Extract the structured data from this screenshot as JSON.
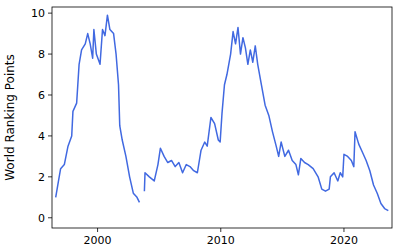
{
  "chart_data": {
    "type": "line",
    "y_label": "World Ranking Points",
    "x": [
      1996.6,
      1996.8,
      1997.0,
      1997.3,
      1997.6,
      1997.9,
      1998.0,
      1998.3,
      1998.5,
      1998.7,
      1999.0,
      1999.2,
      1999.4,
      1999.6,
      1999.7,
      1999.9,
      2000.2,
      2000.4,
      2000.6,
      2000.8,
      2001.0,
      2001.3,
      2001.5,
      2001.7,
      2001.8,
      2002.0,
      2002.3,
      2002.6,
      2002.9,
      2003.2,
      2003.4,
      2003.6,
      2003.8,
      2003.85,
      2004.2,
      2004.6,
      2004.9,
      2005.1,
      2005.4,
      2005.7,
      2006.0,
      2006.3,
      2006.6,
      2006.9,
      2007.2,
      2007.5,
      2007.8,
      2008.1,
      2008.4,
      2008.7,
      2008.9,
      2009.2,
      2009.5,
      2009.8,
      2009.95,
      2010.1,
      2010.3,
      2010.5,
      2010.8,
      2011.0,
      2011.2,
      2011.4,
      2011.6,
      2011.8,
      2012.0,
      2012.2,
      2012.4,
      2012.6,
      2012.8,
      2013.0,
      2013.3,
      2013.6,
      2013.9,
      2014.2,
      2014.5,
      2014.7,
      2014.9,
      2015.2,
      2015.5,
      2015.8,
      2016.1,
      2016.3,
      2016.5,
      2016.8,
      2017.1,
      2017.5,
      2017.9,
      2018.2,
      2018.5,
      2018.8,
      2018.9,
      2019.2,
      2019.5,
      2019.7,
      2019.9,
      2020.0,
      2020.3,
      2020.6,
      2020.8,
      2020.9,
      2021.2,
      2021.5,
      2021.8,
      2022.1,
      2022.4,
      2022.7,
      2023.0,
      2023.3,
      2023.6
    ],
    "series": [
      {
        "name": "World Ranking Points",
        "color": "#4169e1",
        "values": [
          1.0,
          1.7,
          2.4,
          2.6,
          3.5,
          4.0,
          5.2,
          5.6,
          7.5,
          8.2,
          8.5,
          9.0,
          8.5,
          7.8,
          9.2,
          8.0,
          7.5,
          9.2,
          8.9,
          9.9,
          9.2,
          9.0,
          8.0,
          6.5,
          4.5,
          3.8,
          3.0,
          2.0,
          1.2,
          1.0,
          0.75,
          null,
          1.3,
          2.2,
          2.0,
          1.8,
          2.6,
          3.4,
          3.0,
          2.7,
          2.8,
          2.5,
          2.7,
          2.2,
          2.6,
          2.5,
          2.3,
          2.2,
          3.3,
          3.7,
          3.5,
          4.9,
          4.6,
          3.8,
          3.7,
          5.1,
          6.5,
          7.0,
          8.0,
          9.1,
          8.5,
          9.3,
          8.0,
          8.8,
          8.3,
          7.5,
          8.2,
          7.6,
          8.4,
          7.5,
          6.5,
          5.5,
          5.0,
          4.2,
          3.5,
          3.0,
          3.7,
          3.0,
          3.3,
          2.8,
          2.6,
          2.1,
          2.9,
          2.7,
          2.6,
          2.4,
          2.0,
          1.4,
          1.3,
          1.4,
          2.0,
          2.2,
          1.8,
          2.2,
          2.0,
          3.1,
          3.0,
          2.8,
          2.5,
          4.2,
          3.6,
          3.2,
          2.8,
          2.3,
          1.6,
          1.2,
          0.7,
          0.45,
          0.35
        ]
      }
    ],
    "xlim": [
      1996.3,
      2023.9
    ],
    "ylim": [
      -0.5,
      10.3
    ],
    "xticks": [
      2000,
      2010,
      2020
    ],
    "yticks": [
      0,
      2,
      4,
      6,
      8,
      10
    ],
    "grid": false
  }
}
